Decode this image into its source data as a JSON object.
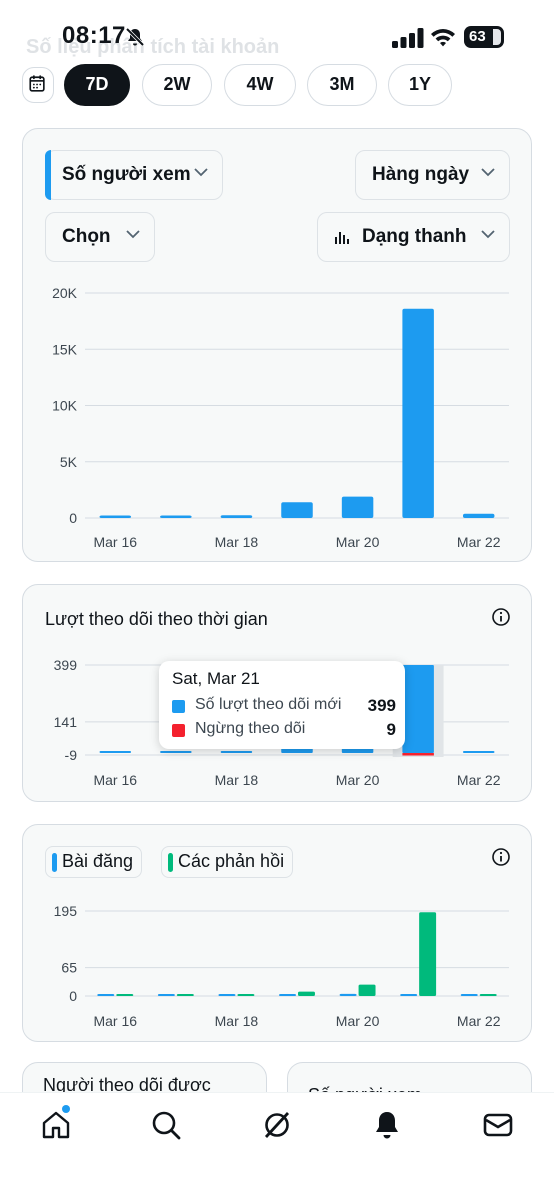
{
  "status_bar": {
    "time": "08:17",
    "battery": "63"
  },
  "header": {
    "title": "Số liệu phân tích tài khoản"
  },
  "range_chips": {
    "items": [
      "7D",
      "2W",
      "4W",
      "3M",
      "1Y"
    ],
    "active": "7D"
  },
  "views_card": {
    "metric_dropdown": "Số người xem",
    "period_dropdown": "Hàng ngày",
    "compare_dropdown": "Chọn",
    "type_dropdown": "Dạng thanh",
    "chart_data": {
      "type": "bar",
      "categories": [
        "Mar 16",
        "Mar 17",
        "Mar 18",
        "Mar 19",
        "Mar 20",
        "Mar 21",
        "Mar 22"
      ],
      "values": [
        150,
        80,
        250,
        1400,
        1900,
        18600,
        380
      ],
      "ylim": [
        0,
        20000
      ],
      "yticks": [
        "0",
        "5K",
        "10K",
        "15K",
        "20K"
      ],
      "xtick_labels": [
        "Mar 16",
        "Mar 18",
        "Mar 20",
        "Mar 22"
      ],
      "color": "#1d9bf0"
    }
  },
  "follows_card": {
    "title": "Lượt theo dõi theo thời gian",
    "tooltip": {
      "date": "Sat, Mar 21",
      "rows": [
        {
          "label": "Số lượt theo dõi mới",
          "value": "399",
          "color": "#1d9bf0"
        },
        {
          "label": "Ngừng theo dõi",
          "value": "9",
          "color": "#f4212e"
        }
      ]
    },
    "chart_data": {
      "type": "bar",
      "categories": [
        "Mar 16",
        "Mar 17",
        "Mar 18",
        "Mar 19",
        "Mar 20",
        "Mar 21",
        "Mar 22"
      ],
      "series": [
        {
          "name": "Số lượt theo dõi mới",
          "values": [
            2,
            2,
            3,
            30,
            32,
            399,
            8
          ],
          "color": "#1d9bf0"
        },
        {
          "name": "Ngừng theo dõi",
          "values": [
            0,
            0,
            0,
            1,
            1,
            9,
            0
          ],
          "color": "#f4212e"
        }
      ],
      "ylim": [
        -9,
        399
      ],
      "yticks": [
        "-9",
        "141",
        "399"
      ],
      "xtick_labels": [
        "Mar 16",
        "Mar 18",
        "Mar 20",
        "Mar 22"
      ]
    }
  },
  "posts_card": {
    "legend": {
      "posts": "Bài đăng",
      "replies": "Các phản hồi"
    },
    "chart_data": {
      "type": "bar",
      "categories": [
        "Mar 16",
        "Mar 17",
        "Mar 18",
        "Mar 19",
        "Mar 20",
        "Mar 21",
        "Mar 22"
      ],
      "series": [
        {
          "name": "Bài đăng",
          "values": [
            1,
            0,
            2,
            3,
            5,
            3,
            0
          ],
          "color": "#1d9bf0"
        },
        {
          "name": "Các phản hồi",
          "values": [
            0,
            0,
            3,
            10,
            26,
            192,
            0
          ],
          "color": "#00ba7c"
        }
      ],
      "ylim": [
        0,
        195
      ],
      "yticks": [
        "0",
        "65",
        "195"
      ],
      "xtick_labels": [
        "Mar 16",
        "Mar 18",
        "Mar 20",
        "Mar 22"
      ]
    }
  },
  "mini_cards": [
    {
      "title": "Người theo dõi được"
    },
    {
      "title": "Số người xem"
    }
  ],
  "nav": [
    "home-icon",
    "search-icon",
    "grok-icon",
    "notifications-icon",
    "messages-icon"
  ]
}
